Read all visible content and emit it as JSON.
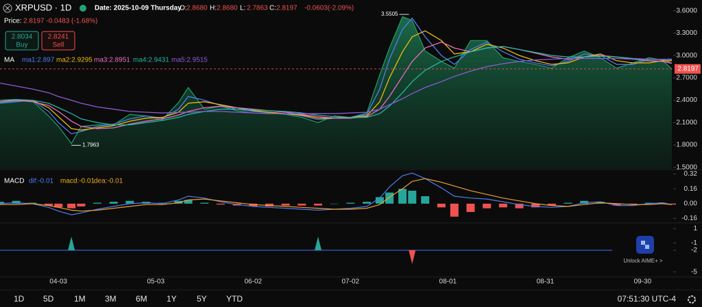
{
  "header": {
    "symbol": "XRPUSD · 1D",
    "date": "Date: 2025-10-09 Thursday",
    "ohlc": [
      {
        "label": "O:",
        "value": "2.8680"
      },
      {
        "label": "H:",
        "value": "2.8680"
      },
      {
        "label": "L:",
        "value": "2.7863"
      },
      {
        "label": "C:",
        "value": "2.8197"
      }
    ],
    "change": "-0.0603(-2.09%)",
    "price_label": "Price:",
    "price_value": "2.8197 -0.0483 (-1.68%)",
    "buy": {
      "price": "2.8034",
      "label": "Buy"
    },
    "sell": {
      "price": "2.8241",
      "label": "Sell"
    }
  },
  "chart_data": [
    {
      "type": "area",
      "title": "MA",
      "color": "#22a06b",
      "xlim": [
        "03-16",
        "10-09"
      ],
      "x": [
        "03-16",
        "03-21",
        "03-26",
        "03-31",
        "04-03",
        "04-07",
        "04-10",
        "04-15",
        "04-20",
        "04-25",
        "04-30",
        "05-05",
        "05-10",
        "05-13",
        "05-18",
        "05-23",
        "05-28",
        "06-02",
        "06-07",
        "06-12",
        "06-17",
        "06-22",
        "06-27",
        "07-02",
        "07-07",
        "07-11",
        "07-14",
        "07-18",
        "07-21",
        "07-25",
        "07-30",
        "08-03",
        "08-08",
        "08-13",
        "08-18",
        "08-23",
        "08-28",
        "09-02",
        "09-07",
        "09-12",
        "09-17",
        "09-22",
        "09-27",
        "10-02",
        "10-06",
        "10-09"
      ],
      "values": [
        2.37,
        2.39,
        2.39,
        2.19,
        2.05,
        1.82,
        2.05,
        2.07,
        2.07,
        2.21,
        2.19,
        2.14,
        2.37,
        2.57,
        2.28,
        2.32,
        2.26,
        2.23,
        2.23,
        2.21,
        2.17,
        2.1,
        2.19,
        2.17,
        2.23,
        2.74,
        3.1,
        3.52,
        3.47,
        3.06,
        2.92,
        2.83,
        3.2,
        3.2,
        2.97,
        2.92,
        2.88,
        2.83,
        2.97,
        3.06,
        2.97,
        2.83,
        2.9,
        2.97,
        2.94,
        2.8197
      ],
      "series": [
        {
          "name": "ma1:2.897",
          "color": "#4f7df0",
          "values": [
            2.36,
            2.38,
            2.4,
            2.25,
            2.1,
            1.95,
            1.98,
            2.05,
            2.08,
            2.15,
            2.19,
            2.16,
            2.28,
            2.45,
            2.4,
            2.33,
            2.28,
            2.25,
            2.24,
            2.22,
            2.19,
            2.14,
            2.16,
            2.17,
            2.21,
            2.55,
            2.95,
            3.35,
            3.5,
            3.25,
            3.0,
            2.88,
            3.08,
            3.18,
            3.05,
            2.95,
            2.9,
            2.86,
            2.92,
            3.02,
            3.0,
            2.88,
            2.88,
            2.95,
            2.95,
            2.897
          ]
        },
        {
          "name": "ma2:2.9295",
          "color": "#f0b90b",
          "values": [
            2.4,
            2.4,
            2.4,
            2.3,
            2.18,
            2.02,
            2.0,
            2.03,
            2.06,
            2.12,
            2.16,
            2.17,
            2.24,
            2.36,
            2.38,
            2.34,
            2.3,
            2.26,
            2.24,
            2.22,
            2.2,
            2.16,
            2.16,
            2.17,
            2.19,
            2.38,
            2.7,
            3.05,
            3.25,
            3.33,
            3.2,
            3.02,
            3.05,
            3.15,
            3.1,
            3.0,
            2.93,
            2.88,
            2.9,
            2.98,
            3.02,
            2.93,
            2.9,
            2.9,
            2.93,
            2.9295
          ]
        },
        {
          "name": "ma3:2.8951",
          "color": "#ea6fbf",
          "values": [
            2.38,
            2.4,
            2.38,
            2.33,
            2.25,
            2.12,
            2.05,
            2.02,
            2.03,
            2.08,
            2.12,
            2.15,
            2.2,
            2.25,
            2.3,
            2.32,
            2.3,
            2.28,
            2.26,
            2.24,
            2.21,
            2.18,
            2.16,
            2.16,
            2.18,
            2.28,
            2.45,
            2.72,
            2.92,
            3.1,
            3.18,
            3.1,
            3.05,
            3.1,
            3.12,
            3.08,
            3.03,
            2.98,
            2.95,
            2.98,
            3.0,
            2.98,
            2.95,
            2.93,
            2.92,
            2.8951
          ]
        },
        {
          "name": "ma4:2.9431",
          "color": "#26b5a6",
          "values": [
            2.4,
            2.41,
            2.4,
            2.36,
            2.3,
            2.22,
            2.15,
            2.1,
            2.07,
            2.07,
            2.1,
            2.13,
            2.17,
            2.21,
            2.25,
            2.28,
            2.28,
            2.27,
            2.26,
            2.25,
            2.23,
            2.2,
            2.18,
            2.17,
            2.17,
            2.22,
            2.32,
            2.5,
            2.65,
            2.8,
            2.92,
            2.98,
            3.05,
            3.1,
            3.12,
            3.08,
            3.04,
            3.0,
            2.98,
            2.98,
            2.99,
            2.98,
            2.96,
            2.95,
            2.95,
            2.9431
          ]
        },
        {
          "name": "ma5:2.9515",
          "color": "#8e5bd6",
          "values": [
            2.63,
            2.59,
            2.55,
            2.5,
            2.45,
            2.4,
            2.36,
            2.31,
            2.28,
            2.25,
            2.24,
            2.23,
            2.24,
            2.24,
            2.25,
            2.25,
            2.24,
            2.23,
            2.22,
            2.22,
            2.22,
            2.22,
            2.22,
            2.23,
            2.24,
            2.28,
            2.34,
            2.42,
            2.49,
            2.57,
            2.65,
            2.72,
            2.79,
            2.85,
            2.89,
            2.92,
            2.94,
            2.95,
            2.96,
            2.96,
            2.96,
            2.96,
            2.95,
            2.95,
            2.95,
            2.9515
          ]
        }
      ],
      "ylim": [
        1.48,
        3.67
      ],
      "yticks": [
        {
          "value": 3.6,
          "label": "3.6000"
        },
        {
          "value": 3.3,
          "label": "3.3000"
        },
        {
          "value": 3.0,
          "label": "3.0000"
        },
        {
          "value": 2.7,
          "label": "2.7000"
        },
        {
          "value": 2.4,
          "label": "2.4000"
        },
        {
          "value": 2.1,
          "label": "2.1000"
        },
        {
          "value": 1.8,
          "label": "1.8000"
        },
        {
          "value": 1.5,
          "label": "1.5000"
        }
      ],
      "high": {
        "x": "07-20",
        "value": 3.5505
      },
      "low": {
        "x": "04-07",
        "value": 1.7963
      },
      "last_price": 2.8197,
      "last_color": "#ef5350"
    },
    {
      "type": "macd",
      "title": "MACD",
      "xlim": [
        "03-16",
        "10-09"
      ],
      "x": [
        "03-16",
        "03-21",
        "03-26",
        "03-31",
        "04-03",
        "04-07",
        "04-10",
        "04-15",
        "04-20",
        "04-25",
        "04-30",
        "05-05",
        "05-10",
        "05-13",
        "05-18",
        "05-23",
        "05-28",
        "06-02",
        "06-07",
        "06-12",
        "06-17",
        "06-22",
        "06-27",
        "07-02",
        "07-07",
        "07-11",
        "07-14",
        "07-18",
        "07-21",
        "07-25",
        "07-30",
        "08-03",
        "08-08",
        "08-13",
        "08-18",
        "08-23",
        "08-28",
        "09-02",
        "09-07",
        "09-12",
        "09-17",
        "09-22",
        "09-27",
        "10-02",
        "10-06",
        "10-09"
      ],
      "histogram": {
        "name": "macd:-0.01",
        "up_color": "#26a69a",
        "down_color": "#ef5350",
        "values": [
          0.02,
          0.03,
          0.01,
          -0.02,
          -0.04,
          -0.05,
          -0.03,
          0.01,
          0.02,
          0.03,
          0.02,
          0.01,
          0.03,
          0.04,
          0.01,
          -0.01,
          -0.02,
          -0.03,
          -0.03,
          -0.02,
          -0.02,
          -0.02,
          0.0,
          0.01,
          0.02,
          0.07,
          0.12,
          0.16,
          0.14,
          0.08,
          -0.04,
          -0.14,
          -0.09,
          -0.05,
          -0.04,
          -0.05,
          -0.04,
          -0.02,
          0.01,
          0.03,
          0.02,
          -0.02,
          -0.01,
          0.01,
          0.01,
          -0.01
        ]
      },
      "series": [
        {
          "name": "dif:-0.01",
          "color": "#4f7df0",
          "values": [
            0.0,
            0.01,
            0.0,
            -0.04,
            -0.08,
            -0.12,
            -0.1,
            -0.06,
            -0.03,
            0.0,
            0.01,
            0.0,
            0.04,
            0.08,
            0.06,
            0.02,
            -0.01,
            -0.03,
            -0.04,
            -0.05,
            -0.06,
            -0.07,
            -0.06,
            -0.05,
            -0.03,
            0.06,
            0.18,
            0.3,
            0.33,
            0.27,
            0.17,
            0.08,
            0.06,
            0.05,
            0.02,
            -0.01,
            -0.03,
            -0.04,
            -0.03,
            0.01,
            0.02,
            -0.02,
            -0.02,
            0.0,
            0.01,
            -0.01
          ]
        },
        {
          "name": "dea:-0.01",
          "color": "#f0a030",
          "values": [
            -0.01,
            -0.01,
            0.0,
            -0.02,
            -0.04,
            -0.07,
            -0.08,
            -0.07,
            -0.05,
            -0.03,
            -0.01,
            -0.01,
            0.01,
            0.04,
            0.05,
            0.03,
            0.01,
            -0.01,
            -0.02,
            -0.03,
            -0.04,
            -0.05,
            -0.06,
            -0.06,
            -0.05,
            -0.01,
            0.07,
            0.16,
            0.24,
            0.27,
            0.23,
            0.19,
            0.14,
            0.1,
            0.06,
            0.03,
            0.0,
            -0.02,
            -0.03,
            -0.01,
            0.01,
            0.0,
            -0.01,
            -0.01,
            0.0,
            -0.01
          ]
        }
      ],
      "ylim": [
        -0.2,
        0.36
      ],
      "yticks": [
        0.32,
        0.16,
        {
          "value": 0,
          "label": "0.00"
        },
        -0.16
      ]
    },
    {
      "type": "signal",
      "xlim": [
        "03-16",
        "10-09"
      ],
      "x": [
        "04-07",
        "06-22",
        "07-21"
      ],
      "values": [
        1,
        1,
        -1
      ],
      "up_color": "#26a69a",
      "down_color": "#ef5350",
      "ylim": [
        -5.6,
        1.6
      ],
      "yticks": [
        1,
        -1,
        -2,
        -5
      ],
      "xticks": [
        "04-03",
        "05-03",
        "06-02",
        "07-02",
        "08-01",
        "08-31",
        "09-30"
      ]
    }
  ],
  "aime": "Unlock AIME+ >",
  "toolbar": {
    "ranges": [
      "1D",
      "5D",
      "1M",
      "3M",
      "6M",
      "1Y",
      "5Y",
      "YTD"
    ],
    "time": "07:51:30 UTC-4"
  }
}
